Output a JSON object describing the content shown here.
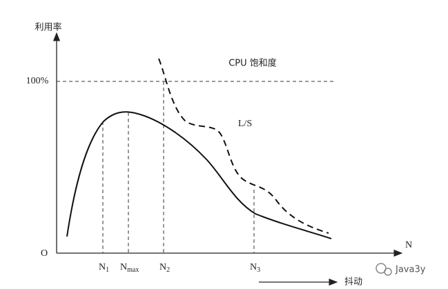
{
  "axes": {
    "y_label": "利用率",
    "origin": "O",
    "x_label": "N",
    "y_tick": "100%"
  },
  "curves": {
    "saturation": "CPU 饱和度",
    "ls": "L/S"
  },
  "x_marks": [
    {
      "main": "N",
      "sub": "1"
    },
    {
      "main": "N",
      "sub": "max"
    },
    {
      "main": "N",
      "sub": "2"
    },
    {
      "main": "N",
      "sub": "3"
    }
  ],
  "thrashing": "抖动",
  "watermark": "Java3y"
}
